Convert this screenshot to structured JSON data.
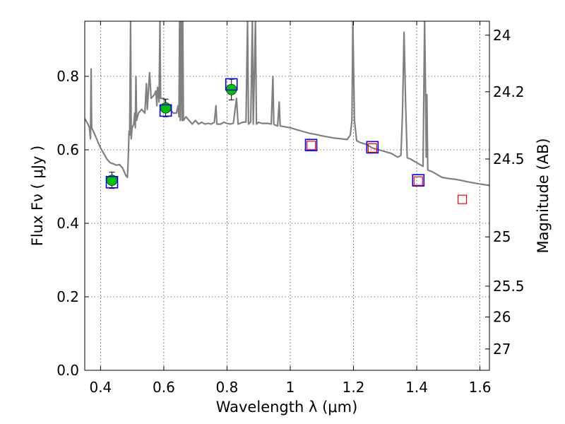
{
  "chart_data": {
    "type": "scatter",
    "xlabel": "Wavelength  λ (μm)",
    "ylabel": "Flux  Fν  ( μJy )",
    "ylabel_right": "Magnitude (AB)",
    "xlim": [
      0.35,
      1.63
    ],
    "ylim": [
      0.0,
      0.95
    ],
    "grid": true,
    "x_ticks": [
      0.4,
      0.6,
      0.8,
      1.0,
      1.2,
      1.4,
      1.6
    ],
    "x_tick_labels": [
      "0.4",
      "0.6",
      "0.8",
      "1",
      "1.2",
      "1.4",
      "1.6"
    ],
    "y_ticks": [
      0.0,
      0.2,
      0.4,
      0.6,
      0.8
    ],
    "y_tick_labels": [
      "0.0",
      "0.2",
      "0.4",
      "0.6",
      "0.8"
    ],
    "right_ticks": [
      {
        "label": "24",
        "flux": 0.912
      },
      {
        "label": "24.2",
        "flux": 0.758
      },
      {
        "label": "24.5",
        "flux": 0.575
      },
      {
        "label": "25",
        "flux": 0.363
      },
      {
        "label": "25.5",
        "flux": 0.229
      },
      {
        "label": "26",
        "flux": 0.145
      },
      {
        "label": "27",
        "flux": 0.058
      }
    ],
    "model_spectrum": {
      "color": "#808080",
      "points": [
        [
          0.35,
          0.685
        ],
        [
          0.36,
          0.67
        ],
        [
          0.365,
          0.66
        ],
        [
          0.368,
          0.63
        ],
        [
          0.37,
          0.82
        ],
        [
          0.372,
          0.66
        ],
        [
          0.38,
          0.645
        ],
        [
          0.39,
          0.625
        ],
        [
          0.4,
          0.605
        ],
        [
          0.41,
          0.59
        ],
        [
          0.42,
          0.575
        ],
        [
          0.43,
          0.565
        ],
        [
          0.44,
          0.562
        ],
        [
          0.45,
          0.558
        ],
        [
          0.46,
          0.56
        ],
        [
          0.47,
          0.55
        ],
        [
          0.48,
          0.53
        ],
        [
          0.485,
          0.525
        ],
        [
          0.487,
          0.56
        ],
        [
          0.49,
          0.65
        ],
        [
          0.492,
          0.64
        ],
        [
          0.495,
          0.95
        ],
        [
          0.497,
          0.63
        ],
        [
          0.5,
          0.66
        ],
        [
          0.505,
          0.67
        ],
        [
          0.508,
          0.7
        ],
        [
          0.51,
          0.66
        ],
        [
          0.512,
          0.8
        ],
        [
          0.514,
          0.68
        ],
        [
          0.52,
          0.7
        ],
        [
          0.53,
          0.71
        ],
        [
          0.54,
          0.7
        ],
        [
          0.545,
          0.78
        ],
        [
          0.548,
          0.71
        ],
        [
          0.55,
          0.74
        ],
        [
          0.555,
          0.81
        ],
        [
          0.56,
          0.74
        ],
        [
          0.57,
          0.75
        ],
        [
          0.575,
          0.76
        ],
        [
          0.578,
          0.72
        ],
        [
          0.58,
          0.77
        ],
        [
          0.583,
          0.76
        ],
        [
          0.585,
          0.73
        ],
        [
          0.588,
          0.95
        ],
        [
          0.59,
          0.74
        ],
        [
          0.6,
          0.74
        ],
        [
          0.61,
          0.72
        ],
        [
          0.62,
          0.71
        ],
        [
          0.63,
          0.7
        ],
        [
          0.64,
          0.7
        ],
        [
          0.645,
          0.72
        ],
        [
          0.648,
          0.69
        ],
        [
          0.65,
          0.95
        ],
        [
          0.652,
          0.68
        ],
        [
          0.655,
          0.95
        ],
        [
          0.658,
          0.68
        ],
        [
          0.66,
          0.95
        ],
        [
          0.662,
          0.68
        ],
        [
          0.67,
          0.69
        ],
        [
          0.68,
          0.68
        ],
        [
          0.69,
          0.67
        ],
        [
          0.7,
          0.68
        ],
        [
          0.71,
          0.67
        ],
        [
          0.72,
          0.675
        ],
        [
          0.73,
          0.67
        ],
        [
          0.74,
          0.672
        ],
        [
          0.75,
          0.67
        ],
        [
          0.76,
          0.675
        ],
        [
          0.765,
          0.72
        ],
        [
          0.768,
          0.67
        ],
        [
          0.78,
          0.67
        ],
        [
          0.79,
          0.675
        ],
        [
          0.8,
          0.672
        ],
        [
          0.81,
          0.67
        ],
        [
          0.82,
          0.672
        ],
        [
          0.83,
          0.74
        ],
        [
          0.835,
          0.67
        ],
        [
          0.85,
          0.675
        ],
        [
          0.86,
          0.676
        ],
        [
          0.865,
          0.95
        ],
        [
          0.868,
          0.67
        ],
        [
          0.875,
          0.676
        ],
        [
          0.88,
          0.95
        ],
        [
          0.883,
          0.67
        ],
        [
          0.89,
          0.95
        ],
        [
          0.893,
          0.67
        ],
        [
          0.9,
          0.675
        ],
        [
          0.91,
          0.672
        ],
        [
          0.92,
          0.672
        ],
        [
          0.93,
          0.672
        ],
        [
          0.94,
          0.67
        ],
        [
          0.945,
          0.8
        ],
        [
          0.948,
          0.67
        ],
        [
          0.95,
          0.668
        ],
        [
          0.96,
          0.665
        ],
        [
          0.965,
          0.73
        ],
        [
          0.968,
          0.665
        ],
        [
          0.98,
          0.663
        ],
        [
          1.0,
          0.66
        ],
        [
          1.02,
          0.655
        ],
        [
          1.04,
          0.65
        ],
        [
          1.06,
          0.645
        ],
        [
          1.08,
          0.642
        ],
        [
          1.1,
          0.638
        ],
        [
          1.12,
          0.635
        ],
        [
          1.14,
          0.632
        ],
        [
          1.16,
          0.63
        ],
        [
          1.18,
          0.628
        ],
        [
          1.19,
          0.64
        ],
        [
          1.195,
          0.68
        ],
        [
          1.198,
          0.95
        ],
        [
          1.203,
          0.68
        ],
        [
          1.21,
          0.625
        ],
        [
          1.22,
          0.62
        ],
        [
          1.24,
          0.615
        ],
        [
          1.26,
          0.605
        ],
        [
          1.28,
          0.6
        ],
        [
          1.3,
          0.595
        ],
        [
          1.32,
          0.59
        ],
        [
          1.34,
          0.58
        ],
        [
          1.35,
          0.585
        ],
        [
          1.355,
          0.7
        ],
        [
          1.36,
          0.92
        ],
        [
          1.365,
          0.72
        ],
        [
          1.37,
          0.578
        ],
        [
          1.38,
          0.575
        ],
        [
          1.4,
          0.565
        ],
        [
          1.42,
          0.555
        ],
        [
          1.425,
          0.95
        ],
        [
          1.428,
          0.75
        ],
        [
          1.43,
          0.58
        ],
        [
          1.432,
          0.75
        ],
        [
          1.435,
          0.545
        ],
        [
          1.45,
          0.54
        ],
        [
          1.46,
          0.535
        ],
        [
          1.47,
          0.53
        ],
        [
          1.48,
          0.525
        ],
        [
          1.5,
          0.522
        ],
        [
          1.52,
          0.52
        ],
        [
          1.54,
          0.517
        ],
        [
          1.56,
          0.513
        ],
        [
          1.58,
          0.51
        ],
        [
          1.6,
          0.507
        ],
        [
          1.63,
          0.503
        ]
      ]
    },
    "observed_points": {
      "color": "#00c000",
      "points": [
        {
          "x": 0.436,
          "y": 0.517,
          "err": 0.022
        },
        {
          "x": 0.606,
          "y": 0.714,
          "err": 0.024
        },
        {
          "x": 0.814,
          "y": 0.764,
          "err": 0.028
        }
      ]
    },
    "model_boxes_blue": {
      "color": "#0000ff",
      "points": [
        {
          "x": 0.436,
          "y": 0.512
        },
        {
          "x": 0.606,
          "y": 0.707
        },
        {
          "x": 0.814,
          "y": 0.778
        },
        {
          "x": 1.066,
          "y": 0.613
        },
        {
          "x": 1.26,
          "y": 0.607
        },
        {
          "x": 1.405,
          "y": 0.517
        }
      ]
    },
    "model_boxes_red": {
      "color": "#ff0000",
      "points": [
        {
          "x": 1.066,
          "y": 0.612
        },
        {
          "x": 1.26,
          "y": 0.605
        },
        {
          "x": 1.405,
          "y": 0.515
        },
        {
          "x": 1.544,
          "y": 0.465
        }
      ]
    }
  }
}
